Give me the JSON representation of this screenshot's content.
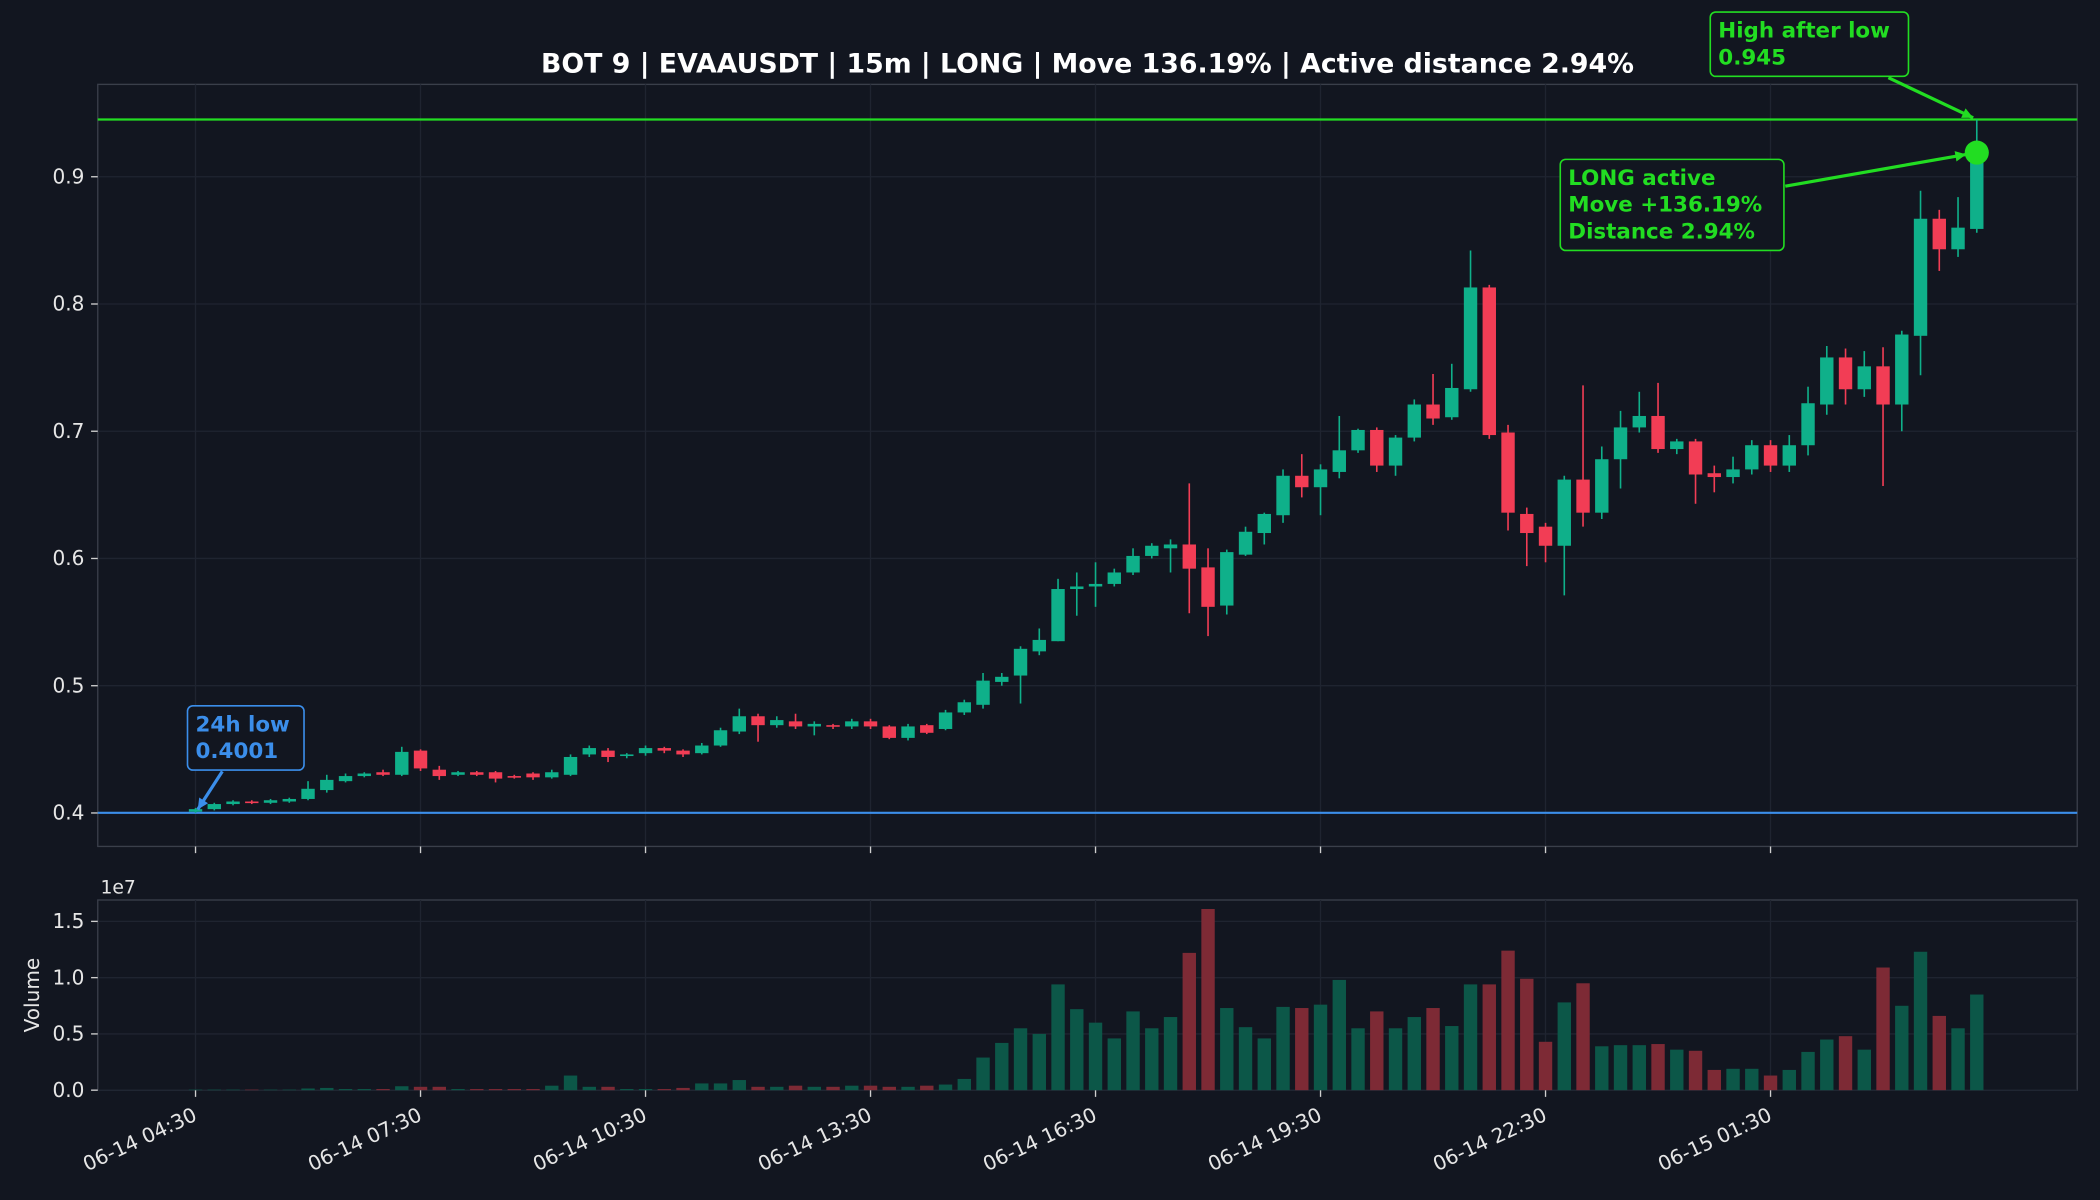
{
  "chart_data": {
    "type": "candlestick",
    "title": "BOT 9 | EVAAUSDT | 15m | LONG | Move 136.19% | Active distance 2.94%",
    "up_color": "#0fb08a",
    "down_color": "#f23d55",
    "volume_up_color": "#0c5748",
    "volume_down_color": "#7d2a35",
    "grid": true,
    "x": [
      "06-14 04:30",
      "06-14 04:45",
      "06-14 05:00",
      "06-14 05:15",
      "06-14 05:30",
      "06-14 05:45",
      "06-14 06:00",
      "06-14 06:15",
      "06-14 06:30",
      "06-14 06:45",
      "06-14 07:00",
      "06-14 07:15",
      "06-14 07:30",
      "06-14 07:45",
      "06-14 08:00",
      "06-14 08:15",
      "06-14 08:30",
      "06-14 08:45",
      "06-14 09:00",
      "06-14 09:15",
      "06-14 09:30",
      "06-14 09:45",
      "06-14 10:00",
      "06-14 10:15",
      "06-14 10:30",
      "06-14 10:45",
      "06-14 11:00",
      "06-14 11:15",
      "06-14 11:30",
      "06-14 11:45",
      "06-14 12:00",
      "06-14 12:15",
      "06-14 12:30",
      "06-14 12:45",
      "06-14 13:00",
      "06-14 13:15",
      "06-14 13:30",
      "06-14 13:45",
      "06-14 14:00",
      "06-14 14:15",
      "06-14 14:30",
      "06-14 14:45",
      "06-14 15:00",
      "06-14 15:15",
      "06-14 15:30",
      "06-14 15:45",
      "06-14 16:00",
      "06-14 16:15",
      "06-14 16:30",
      "06-14 16:45",
      "06-14 17:00",
      "06-14 17:15",
      "06-14 17:30",
      "06-14 17:45",
      "06-14 18:00",
      "06-14 18:15",
      "06-14 18:30",
      "06-14 18:45",
      "06-14 19:00",
      "06-14 19:15",
      "06-14 19:30",
      "06-14 19:45",
      "06-14 20:00",
      "06-14 20:15",
      "06-14 20:30",
      "06-14 20:45",
      "06-14 21:00",
      "06-14 21:15",
      "06-14 21:30",
      "06-14 21:45",
      "06-14 22:00",
      "06-14 22:15",
      "06-14 22:30",
      "06-14 22:45",
      "06-14 23:00",
      "06-14 23:15",
      "06-14 23:30",
      "06-14 23:45",
      "06-15 00:00",
      "06-15 00:15",
      "06-15 00:30",
      "06-15 00:45",
      "06-15 01:00",
      "06-15 01:15",
      "06-15 01:30",
      "06-15 01:45",
      "06-15 02:00",
      "06-15 02:15",
      "06-15 02:30",
      "06-15 02:45",
      "06-15 03:00",
      "06-15 03:15",
      "06-15 03:30",
      "06-15 03:45",
      "06-15 04:00",
      "06-15 04:15"
    ],
    "xticks": [
      "06-14 04:30",
      "06-14 07:30",
      "06-14 10:30",
      "06-14 13:30",
      "06-14 16:30",
      "06-14 19:30",
      "06-14 22:30",
      "06-15 01:30"
    ],
    "open": [
      0.401,
      0.403,
      0.407,
      0.409,
      0.408,
      0.409,
      0.411,
      0.418,
      0.425,
      0.429,
      0.432,
      0.43,
      0.449,
      0.434,
      0.43,
      0.432,
      0.432,
      0.429,
      0.431,
      0.428,
      0.43,
      0.446,
      0.449,
      0.445,
      0.447,
      0.451,
      0.449,
      0.447,
      0.453,
      0.464,
      0.476,
      0.469,
      0.472,
      0.468,
      0.469,
      0.468,
      0.472,
      0.468,
      0.459,
      0.469,
      0.466,
      0.479,
      0.485,
      0.503,
      0.508,
      0.527,
      0.535,
      0.576,
      0.578,
      0.58,
      0.589,
      0.602,
      0.608,
      0.611,
      0.593,
      0.563,
      0.603,
      0.62,
      0.634,
      0.665,
      0.656,
      0.668,
      0.685,
      0.701,
      0.673,
      0.695,
      0.721,
      0.711,
      0.733,
      0.813,
      0.699,
      0.635,
      0.625,
      0.61,
      0.662,
      0.636,
      0.678,
      0.703,
      0.712,
      0.686,
      0.692,
      0.667,
      0.664,
      0.67,
      0.689,
      0.673,
      0.689,
      0.721,
      0.758,
      0.733,
      0.751,
      0.721,
      0.775,
      0.867,
      0.843,
      0.859
    ],
    "high": [
      0.404,
      0.408,
      0.41,
      0.41,
      0.411,
      0.412,
      0.425,
      0.43,
      0.431,
      0.432,
      0.434,
      0.452,
      0.45,
      0.437,
      0.433,
      0.433,
      0.433,
      0.43,
      0.432,
      0.434,
      0.446,
      0.453,
      0.451,
      0.447,
      0.453,
      0.452,
      0.45,
      0.455,
      0.467,
      0.482,
      0.478,
      0.476,
      0.478,
      0.472,
      0.47,
      0.474,
      0.474,
      0.469,
      0.47,
      0.47,
      0.481,
      0.489,
      0.51,
      0.51,
      0.531,
      0.545,
      0.584,
      0.589,
      0.597,
      0.592,
      0.608,
      0.612,
      0.615,
      0.659,
      0.608,
      0.607,
      0.625,
      0.636,
      0.67,
      0.682,
      0.674,
      0.712,
      0.702,
      0.703,
      0.697,
      0.725,
      0.745,
      0.753,
      0.842,
      0.815,
      0.705,
      0.64,
      0.628,
      0.665,
      0.736,
      0.688,
      0.716,
      0.731,
      0.738,
      0.694,
      0.694,
      0.673,
      0.68,
      0.693,
      0.693,
      0.697,
      0.735,
      0.767,
      0.765,
      0.763,
      0.766,
      0.779,
      0.889,
      0.874,
      0.884,
      0.945
    ],
    "low": [
      0.4001,
      0.402,
      0.406,
      0.407,
      0.407,
      0.408,
      0.41,
      0.416,
      0.424,
      0.428,
      0.429,
      0.429,
      0.433,
      0.426,
      0.429,
      0.429,
      0.424,
      0.427,
      0.426,
      0.427,
      0.429,
      0.444,
      0.44,
      0.443,
      0.445,
      0.447,
      0.444,
      0.446,
      0.452,
      0.462,
      0.456,
      0.467,
      0.466,
      0.461,
      0.466,
      0.466,
      0.466,
      0.458,
      0.457,
      0.462,
      0.465,
      0.477,
      0.482,
      0.5,
      0.486,
      0.524,
      0.535,
      0.555,
      0.562,
      0.578,
      0.587,
      0.6,
      0.589,
      0.557,
      0.539,
      0.556,
      0.602,
      0.611,
      0.628,
      0.648,
      0.634,
      0.663,
      0.683,
      0.668,
      0.665,
      0.692,
      0.705,
      0.709,
      0.731,
      0.694,
      0.622,
      0.594,
      0.597,
      0.571,
      0.625,
      0.631,
      0.655,
      0.699,
      0.683,
      0.682,
      0.643,
      0.652,
      0.659,
      0.666,
      0.668,
      0.668,
      0.681,
      0.713,
      0.721,
      0.727,
      0.657,
      0.7,
      0.744,
      0.826,
      0.837,
      0.856
    ],
    "close": [
      0.403,
      0.407,
      0.409,
      0.408,
      0.41,
      0.411,
      0.419,
      0.426,
      0.429,
      0.431,
      0.43,
      0.448,
      0.435,
      0.429,
      0.432,
      0.43,
      0.427,
      0.428,
      0.428,
      0.432,
      0.444,
      0.451,
      0.444,
      0.446,
      0.451,
      0.449,
      0.446,
      0.453,
      0.465,
      0.476,
      0.469,
      0.473,
      0.468,
      0.47,
      0.468,
      0.472,
      0.468,
      0.459,
      0.468,
      0.463,
      0.479,
      0.487,
      0.504,
      0.507,
      0.529,
      0.536,
      0.576,
      0.578,
      0.58,
      0.589,
      0.602,
      0.61,
      0.611,
      0.592,
      0.562,
      0.605,
      0.621,
      0.635,
      0.665,
      0.656,
      0.67,
      0.685,
      0.701,
      0.673,
      0.695,
      0.721,
      0.71,
      0.734,
      0.813,
      0.697,
      0.636,
      0.62,
      0.61,
      0.662,
      0.636,
      0.678,
      0.703,
      0.712,
      0.686,
      0.692,
      0.666,
      0.664,
      0.67,
      0.689,
      0.673,
      0.689,
      0.722,
      0.758,
      0.733,
      0.751,
      0.721,
      0.776,
      0.867,
      0.843,
      0.86,
      0.919
    ],
    "ylim": [
      0.3737,
      0.9726
    ],
    "yticks": [
      0.4,
      0.5,
      0.6,
      0.7,
      0.8,
      0.9
    ],
    "hlines": [
      {
        "value": 0.945,
        "color": "#22dd22"
      },
      {
        "value": 0.4001,
        "color": "#3b8eea"
      }
    ],
    "annotations": [
      {
        "text": [
          "24h low",
          "0.4001"
        ],
        "x": "06-14 04:30",
        "y": 0.4001,
        "color": "#3b8eea"
      },
      {
        "text": [
          "High after low",
          "0.945"
        ],
        "x": "06-15 04:15",
        "y": 0.945,
        "color": "#22dd22"
      },
      {
        "text": [
          "LONG active",
          "Move +136.19%",
          "Distance 2.94%"
        ],
        "x": "06-15 04:15",
        "y": 0.919,
        "color": "#22dd22",
        "marker": true
      }
    ],
    "volume": {
      "ylabel": "Volume",
      "offset_label": "1e7",
      "ylim": [
        0,
        16900000
      ],
      "yticks": [
        {
          "value": 0,
          "label": "0.0"
        },
        {
          "value": 5000000,
          "label": "0.5"
        },
        {
          "value": 10000000,
          "label": "1.0"
        },
        {
          "value": 15000000,
          "label": "1.5"
        }
      ],
      "values": [
        50000,
        50000,
        50000,
        50000,
        50000,
        50000,
        150000,
        200000,
        100000,
        100000,
        100000,
        350000,
        300000,
        300000,
        100000,
        100000,
        100000,
        100000,
        100000,
        400000,
        1300000,
        300000,
        300000,
        100000,
        100000,
        100000,
        200000,
        600000,
        600000,
        900000,
        300000,
        300000,
        400000,
        300000,
        300000,
        400000,
        400000,
        300000,
        300000,
        400000,
        500000,
        1000000,
        2900000,
        4200000,
        5500000,
        5000000,
        9400000,
        7200000,
        6000000,
        4600000,
        7000000,
        5500000,
        6500000,
        12200000,
        16100000,
        7300000,
        5600000,
        4600000,
        7400000,
        7300000,
        7600000,
        9800000,
        5500000,
        7000000,
        5500000,
        6500000,
        7300000,
        5700000,
        9400000,
        9400000,
        12400000,
        9900000,
        4300000,
        7800000,
        9500000,
        3900000,
        4000000,
        4000000,
        4100000,
        3600000,
        3500000,
        1800000,
        1900000,
        1900000,
        1300000,
        1800000,
        3400000,
        4500000,
        4800000,
        3600000,
        10900000,
        7500000,
        12300000,
        6600000,
        5500000,
        8500000
      ]
    }
  }
}
